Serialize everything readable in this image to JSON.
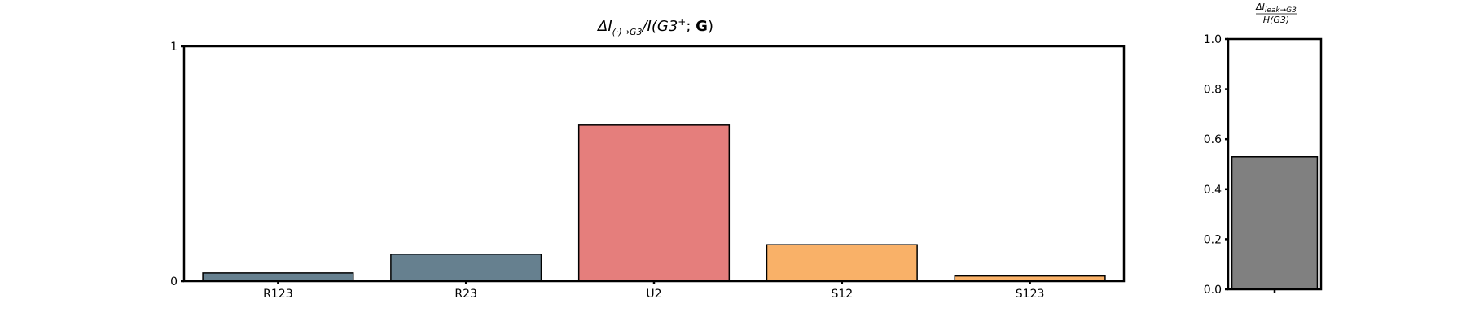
{
  "chart_data": [
    {
      "type": "bar",
      "title": "ΔI(·)→G3/I(G3⁺; G)",
      "title_parts": {
        "delta_i": "ΔI",
        "subscript": "(·)→G3",
        "slash_i": "/I(",
        "g3": "G3",
        "sup": "+",
        "semi": "; ",
        "bold_g": "G",
        "close": ")"
      },
      "categories": [
        "R123",
        "R23",
        "U2",
        "S12",
        "S123"
      ],
      "values": [
        0.035,
        0.115,
        0.665,
        0.155,
        0.022
      ],
      "colors": [
        "#66808f",
        "#66808f",
        "#e57e7c",
        "#f9b168",
        "#f9b168"
      ],
      "ylim": [
        0,
        1
      ],
      "yticks": [
        "0",
        "1"
      ],
      "xlabel": "",
      "ylabel": "",
      "grid": false
    },
    {
      "type": "bar",
      "title": "ΔI_leak→G3 / H(G3)",
      "title_parts": {
        "num_main": "ΔI",
        "num_sub": "leak→G3",
        "den": "H(G3)"
      },
      "categories": [
        ""
      ],
      "values": [
        0.53
      ],
      "colors": [
        "#808080"
      ],
      "ylim": [
        0,
        1
      ],
      "yticks": [
        "0.0",
        "0.2",
        "0.4",
        "0.6",
        "0.8",
        "1.0"
      ],
      "xlabel": "",
      "ylabel": "",
      "grid": false
    }
  ]
}
